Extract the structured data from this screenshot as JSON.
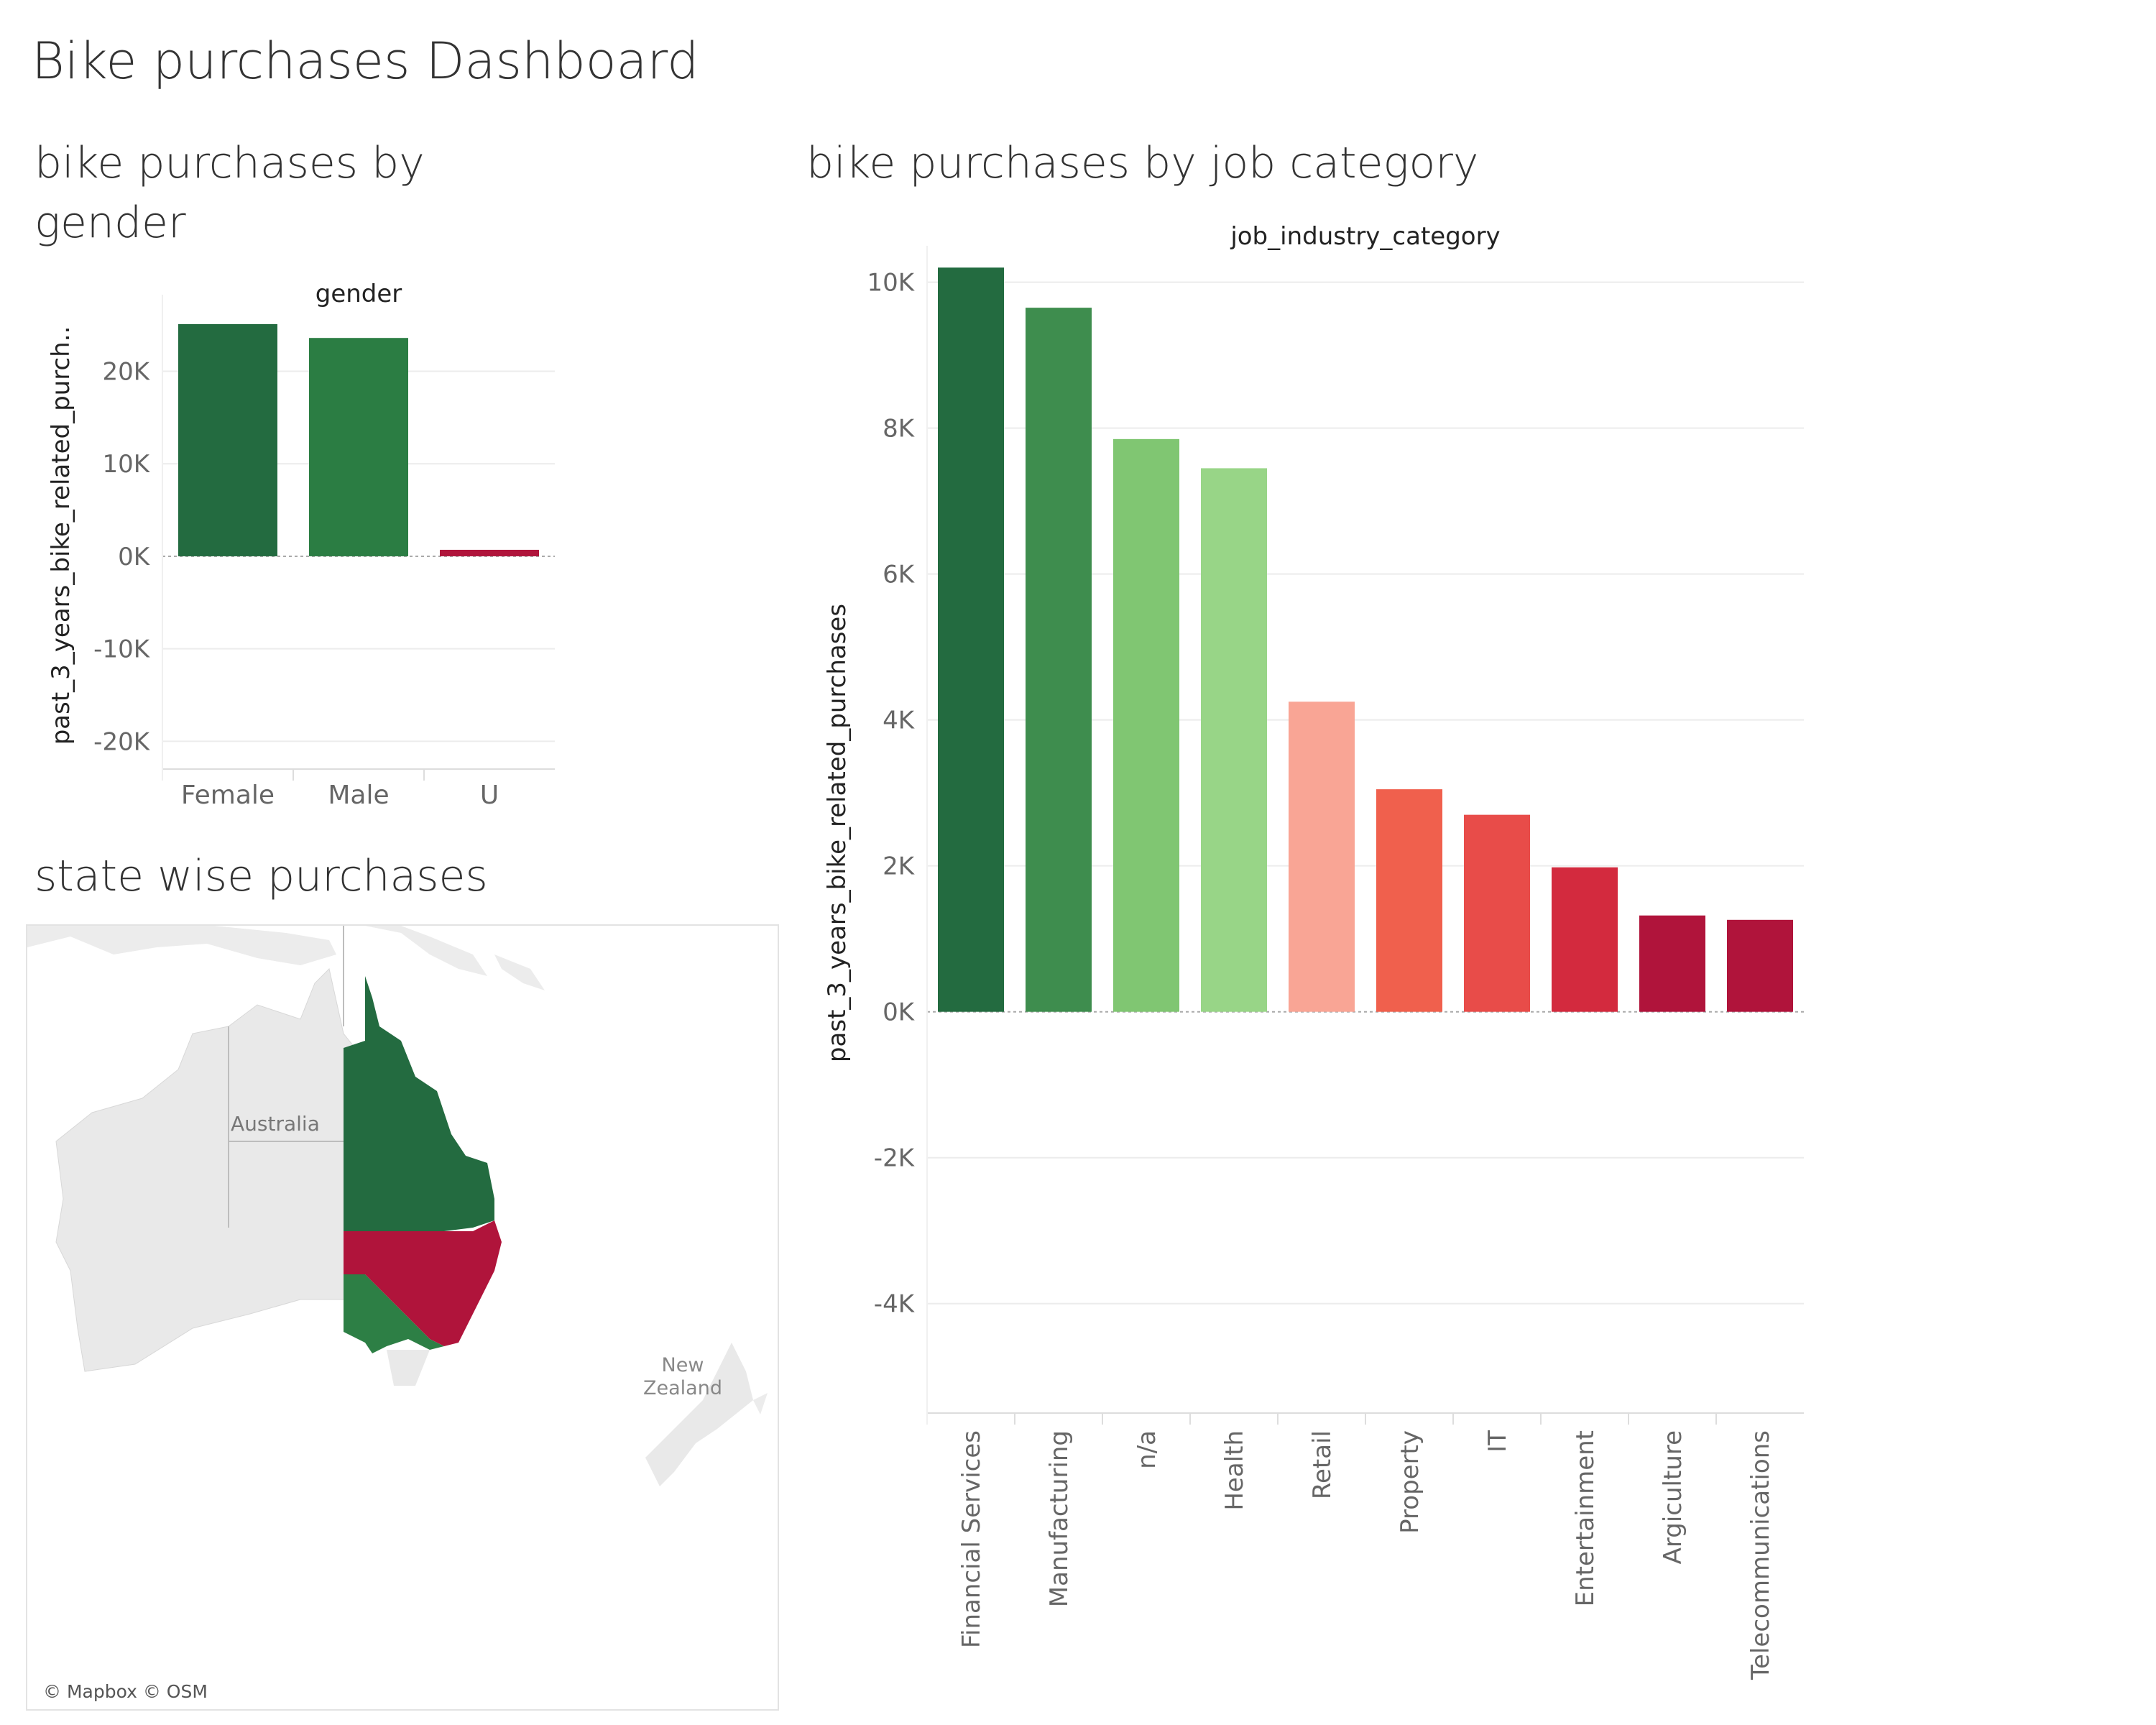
{
  "dashboard": {
    "title": "Bike purchases Dashboard"
  },
  "gender_panel": {
    "title": "bike purchases by gender"
  },
  "job_panel": {
    "title": "bike purchases by job category"
  },
  "map_panel": {
    "title": "state wise purchases",
    "labels": {
      "australia": "Australia",
      "new_zealand_1": "New",
      "new_zealand_2": "Zealand"
    },
    "credit": "© Mapbox © OSM",
    "state_colors": {
      "QLD": "#236b40",
      "NSW": "#b0143b",
      "VIC": "#2d7f45"
    }
  },
  "chart_data": [
    {
      "type": "bar",
      "header": "gender",
      "ylabel": "past_3_years_bike_related_purch..",
      "categories": [
        "Female",
        "Male",
        "U"
      ],
      "values": [
        25100,
        23600,
        700
      ],
      "colors": [
        "#236b40",
        "#2b7d43",
        "#b0143b"
      ],
      "ylim": [
        -23000,
        27500
      ],
      "yticks": [
        -20000,
        -10000,
        0,
        10000,
        20000
      ],
      "ytick_labels": [
        "-20K",
        "-10K",
        "0K",
        "10K",
        "20K"
      ],
      "grid": true
    },
    {
      "type": "bar",
      "header": "job_industry_category",
      "ylabel": "past_3_years_bike_related_purchases",
      "categories": [
        "Financial Services",
        "Manufacturing",
        "n/a",
        "Health",
        "Retail",
        "Property",
        "IT",
        "Entertainment",
        "Argiculture",
        "Telecommunications"
      ],
      "values": [
        10200,
        9650,
        7850,
        7450,
        4250,
        3050,
        2700,
        1980,
        1320,
        1260
      ],
      "colors": [
        "#236b40",
        "#3e8d4e",
        "#80c672",
        "#98d587",
        "#f9a595",
        "#f0604d",
        "#e84c49",
        "#d32a3e",
        "#b0143b",
        "#b0143b"
      ],
      "ylim": [
        -5500,
        10400
      ],
      "yticks": [
        -4000,
        -2000,
        0,
        2000,
        4000,
        6000,
        8000,
        10000
      ],
      "ytick_labels": [
        "-4K",
        "-2K",
        "0K",
        "2K",
        "4K",
        "6K",
        "8K",
        "10K"
      ],
      "grid": true
    }
  ]
}
